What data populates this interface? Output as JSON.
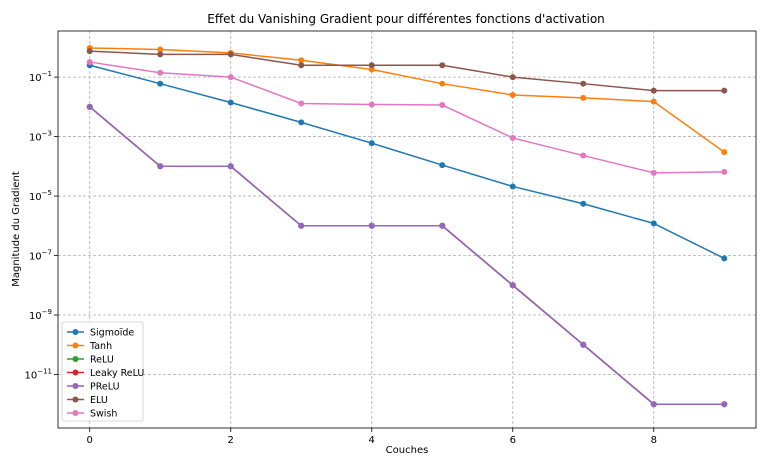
{
  "chart_data": {
    "type": "line",
    "title": "Effet du Vanishing Gradient pour différentes fonctions d'activation",
    "xlabel": "Couches",
    "ylabel": "Magnitude du Gradient",
    "x": [
      0,
      1,
      2,
      3,
      4,
      5,
      6,
      7,
      8,
      9
    ],
    "xlim": [
      -0.45,
      9.45
    ],
    "ylim_log10": [
      -12.8,
      0.55
    ],
    "yscale": "log",
    "x_ticks": [
      0,
      2,
      4,
      6,
      8
    ],
    "y_ticks": [
      {
        "exp": -11,
        "label": "10−11"
      },
      {
        "exp": -9,
        "label": "10−9"
      },
      {
        "exp": -7,
        "label": "10−7"
      },
      {
        "exp": -5,
        "label": "10−5"
      },
      {
        "exp": -3,
        "label": "10−3"
      },
      {
        "exp": -1,
        "label": "10−1"
      }
    ],
    "grid": true,
    "legend_position": "lower-left",
    "series": [
      {
        "name": "Sigmoïde",
        "color": "#1f77b4",
        "values": [
          0.25,
          0.06,
          0.014,
          0.003,
          0.0006,
          0.00011,
          2.1e-05,
          5.5e-06,
          1.2e-06,
          8e-08
        ]
      },
      {
        "name": "Tanh",
        "color": "#ff7f0e",
        "values": [
          0.95,
          0.85,
          0.65,
          0.37,
          0.18,
          0.06,
          0.025,
          0.02,
          0.015,
          0.0003
        ]
      },
      {
        "name": "ReLU",
        "color": "#2ca02c",
        "values": [
          0.01,
          0.0001,
          0.0001,
          1e-06,
          1e-06,
          1e-06,
          1e-08,
          1e-10,
          1e-12,
          1e-12
        ]
      },
      {
        "name": "Leaky ReLU",
        "color": "#d62728",
        "values": [
          0.01,
          0.0001,
          0.0001,
          1e-06,
          1e-06,
          1e-06,
          1e-08,
          1e-10,
          1e-12,
          1e-12
        ]
      },
      {
        "name": "PReLU",
        "color": "#9467bd",
        "values": [
          0.01,
          0.0001,
          0.0001,
          1e-06,
          1e-06,
          1e-06,
          1e-08,
          1e-10,
          1e-12,
          1e-12
        ]
      },
      {
        "name": "ELU",
        "color": "#8c564b",
        "values": [
          0.75,
          0.58,
          0.58,
          0.25,
          0.25,
          0.25,
          0.1,
          0.06,
          0.035,
          0.035
        ]
      },
      {
        "name": "Swish",
        "color": "#e377c2",
        "values": [
          0.32,
          0.14,
          0.1,
          0.013,
          0.012,
          0.0115,
          0.0009,
          0.00023,
          6e-05,
          6.5e-05
        ]
      }
    ]
  }
}
